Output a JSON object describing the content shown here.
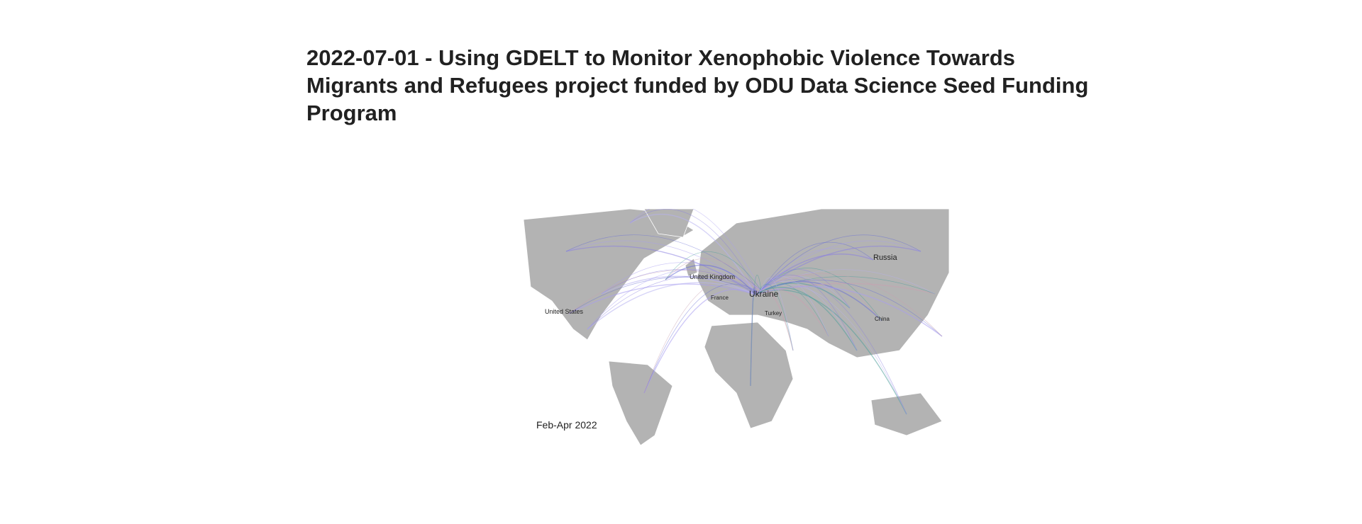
{
  "post": {
    "title": "2022-07-01 - Using GDELT to Monitor Xenophobic Violence Towards Migrants and Refugees project funded by ODU Data Science Seed Funding Program"
  },
  "map": {
    "labels": {
      "russia": "Russia",
      "united_states": "United States",
      "united_kingdom": "United Kingdom",
      "ukraine": "Ukraine",
      "china": "China",
      "turkey": "Turkey",
      "france": "France"
    },
    "caption": "Feb-Apr 2022"
  }
}
